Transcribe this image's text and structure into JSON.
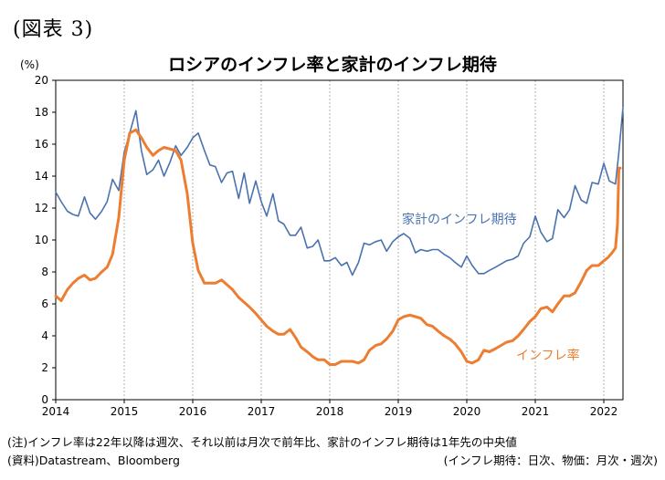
{
  "figure_label": "(図表 3)",
  "notes": {
    "line1": "(注)インフレ率は22年以降は週次、それ以前は月次で前年比、家計のインフレ期待は1年先の中央値",
    "line2": "(資料)Datastream、Bloomberg",
    "line3": "(インフレ期待：日次、物価：月次・週次)"
  },
  "colors": {
    "expectation": "#4a72b0",
    "inflation": "#ed7d31",
    "grid": "#a0a0a0"
  },
  "chart_data": {
    "type": "line",
    "title": "ロシアのインフレ率と家計のインフレ期待",
    "unit": "(%)",
    "xlim": [
      2014.0,
      2022.28
    ],
    "ylim": [
      0,
      20
    ],
    "x_ticks": [
      "2014",
      "2015",
      "2016",
      "2017",
      "2018",
      "2019",
      "2020",
      "2021",
      "2022"
    ],
    "y_ticks": [
      "0",
      "2",
      "4",
      "6",
      "8",
      "10",
      "12",
      "14",
      "16",
      "18",
      "20"
    ],
    "grid": "vertical at year boundaries",
    "series": [
      {
        "name": "家計のインフレ期待",
        "x": [
          2014.0,
          2014.08,
          2014.17,
          2014.25,
          2014.33,
          2014.42,
          2014.5,
          2014.58,
          2014.67,
          2014.75,
          2014.83,
          2014.92,
          2015.0,
          2015.08,
          2015.17,
          2015.25,
          2015.33,
          2015.42,
          2015.5,
          2015.58,
          2015.67,
          2015.75,
          2015.83,
          2015.92,
          2016.0,
          2016.08,
          2016.17,
          2016.25,
          2016.33,
          2016.42,
          2016.5,
          2016.58,
          2016.67,
          2016.75,
          2016.83,
          2016.92,
          2017.0,
          2017.08,
          2017.17,
          2017.25,
          2017.33,
          2017.42,
          2017.5,
          2017.58,
          2017.67,
          2017.75,
          2017.83,
          2017.92,
          2018.0,
          2018.08,
          2018.17,
          2018.25,
          2018.33,
          2018.42,
          2018.5,
          2018.58,
          2018.67,
          2018.75,
          2018.83,
          2018.92,
          2019.0,
          2019.08,
          2019.17,
          2019.25,
          2019.33,
          2019.42,
          2019.5,
          2019.58,
          2019.67,
          2019.75,
          2019.83,
          2019.92,
          2020.0,
          2020.08,
          2020.17,
          2020.25,
          2020.33,
          2020.42,
          2020.5,
          2020.58,
          2020.67,
          2020.75,
          2020.83,
          2020.92,
          2021.0,
          2021.08,
          2021.17,
          2021.25,
          2021.33,
          2021.42,
          2021.5,
          2021.58,
          2021.67,
          2021.75,
          2021.83,
          2021.92,
          2022.0,
          2022.08,
          2022.17,
          2022.22,
          2022.28
        ],
        "y": [
          13.0,
          12.4,
          11.8,
          11.6,
          11.5,
          12.7,
          11.7,
          11.3,
          11.8,
          12.4,
          13.8,
          13.1,
          15.5,
          16.7,
          18.1,
          15.6,
          14.1,
          14.4,
          15.0,
          14.0,
          14.9,
          15.9,
          15.3,
          15.8,
          16.4,
          16.7,
          15.6,
          14.7,
          14.6,
          13.6,
          14.2,
          14.3,
          12.6,
          14.2,
          12.3,
          13.7,
          12.4,
          11.5,
          12.9,
          11.2,
          11.0,
          10.3,
          10.3,
          10.8,
          9.5,
          9.6,
          10.0,
          8.7,
          8.7,
          8.9,
          8.4,
          8.6,
          7.8,
          8.6,
          9.8,
          9.7,
          9.9,
          10.0,
          9.3,
          9.9,
          10.2,
          10.4,
          10.1,
          9.2,
          9.4,
          9.3,
          9.4,
          9.4,
          9.1,
          8.9,
          8.6,
          8.3,
          9.0,
          8.4,
          7.9,
          7.9,
          8.1,
          8.3,
          8.5,
          8.7,
          8.8,
          9.0,
          9.8,
          10.2,
          11.5,
          10.5,
          9.9,
          10.1,
          11.9,
          11.4,
          11.9,
          13.4,
          12.5,
          12.3,
          13.6,
          13.5,
          14.8,
          13.7,
          13.5,
          15.5,
          18.3
        ]
      },
      {
        "name": "インフレ率",
        "x": [
          2014.0,
          2014.08,
          2014.17,
          2014.25,
          2014.33,
          2014.42,
          2014.5,
          2014.58,
          2014.67,
          2014.75,
          2014.83,
          2014.92,
          2015.0,
          2015.08,
          2015.17,
          2015.25,
          2015.33,
          2015.42,
          2015.5,
          2015.58,
          2015.67,
          2015.75,
          2015.83,
          2015.92,
          2016.0,
          2016.08,
          2016.17,
          2016.25,
          2016.33,
          2016.42,
          2016.5,
          2016.58,
          2016.67,
          2016.75,
          2016.83,
          2016.92,
          2017.0,
          2017.08,
          2017.17,
          2017.25,
          2017.33,
          2017.42,
          2017.5,
          2017.58,
          2017.67,
          2017.75,
          2017.83,
          2017.92,
          2018.0,
          2018.08,
          2018.17,
          2018.25,
          2018.33,
          2018.42,
          2018.5,
          2018.58,
          2018.67,
          2018.75,
          2018.83,
          2018.92,
          2019.0,
          2019.08,
          2019.17,
          2019.25,
          2019.33,
          2019.42,
          2019.5,
          2019.58,
          2019.67,
          2019.75,
          2019.83,
          2019.92,
          2020.0,
          2020.08,
          2020.17,
          2020.25,
          2020.33,
          2020.42,
          2020.5,
          2020.58,
          2020.67,
          2020.75,
          2020.83,
          2020.92,
          2021.0,
          2021.08,
          2021.17,
          2021.25,
          2021.33,
          2021.42,
          2021.5,
          2021.58,
          2021.67,
          2021.75,
          2021.83,
          2021.92,
          2022.0,
          2022.06,
          2022.12,
          2022.17,
          2022.2,
          2022.22,
          2022.24
        ],
        "y": [
          6.5,
          6.2,
          6.9,
          7.3,
          7.6,
          7.8,
          7.5,
          7.6,
          8.0,
          8.3,
          9.1,
          11.4,
          15.0,
          16.7,
          16.9,
          16.4,
          15.8,
          15.3,
          15.6,
          15.8,
          15.7,
          15.6,
          15.0,
          12.9,
          9.8,
          8.1,
          7.3,
          7.3,
          7.3,
          7.5,
          7.2,
          6.9,
          6.4,
          6.1,
          5.8,
          5.4,
          5.0,
          4.6,
          4.3,
          4.1,
          4.1,
          4.4,
          3.9,
          3.3,
          3.0,
          2.7,
          2.5,
          2.5,
          2.2,
          2.2,
          2.4,
          2.4,
          2.4,
          2.3,
          2.5,
          3.1,
          3.4,
          3.5,
          3.8,
          4.3,
          5.0,
          5.2,
          5.3,
          5.2,
          5.1,
          4.7,
          4.6,
          4.3,
          4.0,
          3.8,
          3.5,
          3.0,
          2.4,
          2.3,
          2.5,
          3.1,
          3.0,
          3.2,
          3.4,
          3.6,
          3.7,
          4.0,
          4.4,
          4.9,
          5.2,
          5.7,
          5.8,
          5.5,
          6.0,
          6.5,
          6.5,
          6.7,
          7.4,
          8.1,
          8.4,
          8.4,
          8.7,
          8.9,
          9.2,
          9.5,
          11.0,
          14.5,
          14.5
        ]
      }
    ],
    "annotations": {
      "expectation_label": "家計のインフレ期待",
      "inflation_label": "インフレ率"
    }
  }
}
